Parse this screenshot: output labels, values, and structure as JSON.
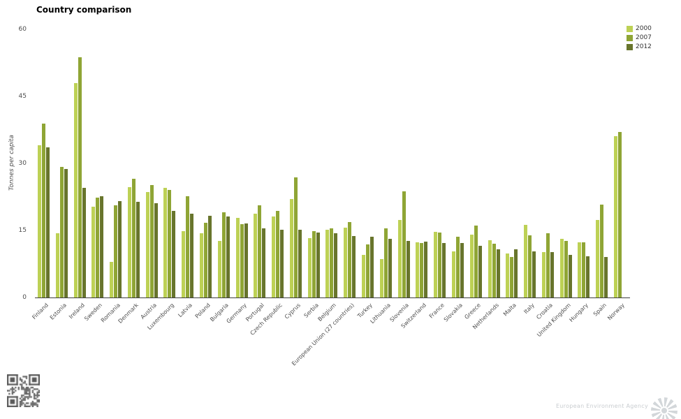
{
  "header": {
    "title": "Country comparison"
  },
  "chart_data": {
    "type": "bar",
    "title": "Country comparison",
    "xlabel": "",
    "ylabel": "Tonnes per capita",
    "ylim": [
      0,
      60
    ],
    "yticks": [
      0,
      15,
      30,
      45,
      60
    ],
    "grid": false,
    "legend_position": "top-right",
    "categories": [
      "Finland",
      "Estonia",
      "Ireland",
      "Sweden",
      "Romania",
      "Denmark",
      "Austria",
      "Luxembourg",
      "Latvia",
      "Poland",
      "Bulgaria",
      "Germany",
      "Portugal",
      "Czech Republic",
      "Cyprus",
      "Serbia",
      "Belgium",
      "European Union (27 countries)",
      "Turkey",
      "Lithuania",
      "Slovenia",
      "Switzerland",
      "France",
      "Slovakia",
      "Greece",
      "Netherlands",
      "Malta",
      "Italy",
      "Croatia",
      "United Kingdom",
      "Hungary",
      "Spain",
      "Norway"
    ],
    "series": [
      {
        "name": "2000",
        "color": "#bdd155",
        "values": [
          34.0,
          14.3,
          48.0,
          20.3,
          7.9,
          24.7,
          23.6,
          24.5,
          14.9,
          14.4,
          12.6,
          17.8,
          18.8,
          18.1,
          22.0,
          13.3,
          15.1,
          15.7,
          9.5,
          8.6,
          17.3,
          12.3,
          14.7,
          10.3,
          14.1,
          12.8,
          9.9,
          16.2,
          10.1,
          13.1,
          12.4,
          17.3,
          36.1
        ]
      },
      {
        "name": "2007",
        "color": "#8fa535",
        "values": [
          38.9,
          29.2,
          53.8,
          22.4,
          20.7,
          26.5,
          25.1,
          24.0,
          22.6,
          16.7,
          19.1,
          16.4,
          20.7,
          19.4,
          26.9,
          14.8,
          15.5,
          16.8,
          11.9,
          15.4,
          23.8,
          12.2,
          14.6,
          13.6,
          16.1,
          12.0,
          9.1,
          13.9,
          14.4,
          12.6,
          12.4,
          20.8,
          37.0
        ]
      },
      {
        "name": "2012",
        "color": "#68752c",
        "values": [
          33.6,
          28.8,
          24.5,
          22.6,
          21.6,
          21.4,
          21.1,
          19.4,
          18.7,
          18.3,
          18.2,
          16.5,
          15.5,
          15.2,
          15.1,
          14.5,
          14.4,
          13.7,
          13.6,
          13.1,
          12.6,
          12.5,
          12.2,
          12.2,
          11.6,
          10.8,
          10.8,
          10.3,
          10.1,
          9.5,
          9.2,
          9.1,
          null
        ]
      }
    ]
  },
  "footer": {
    "agency": "European Environment Agency"
  }
}
